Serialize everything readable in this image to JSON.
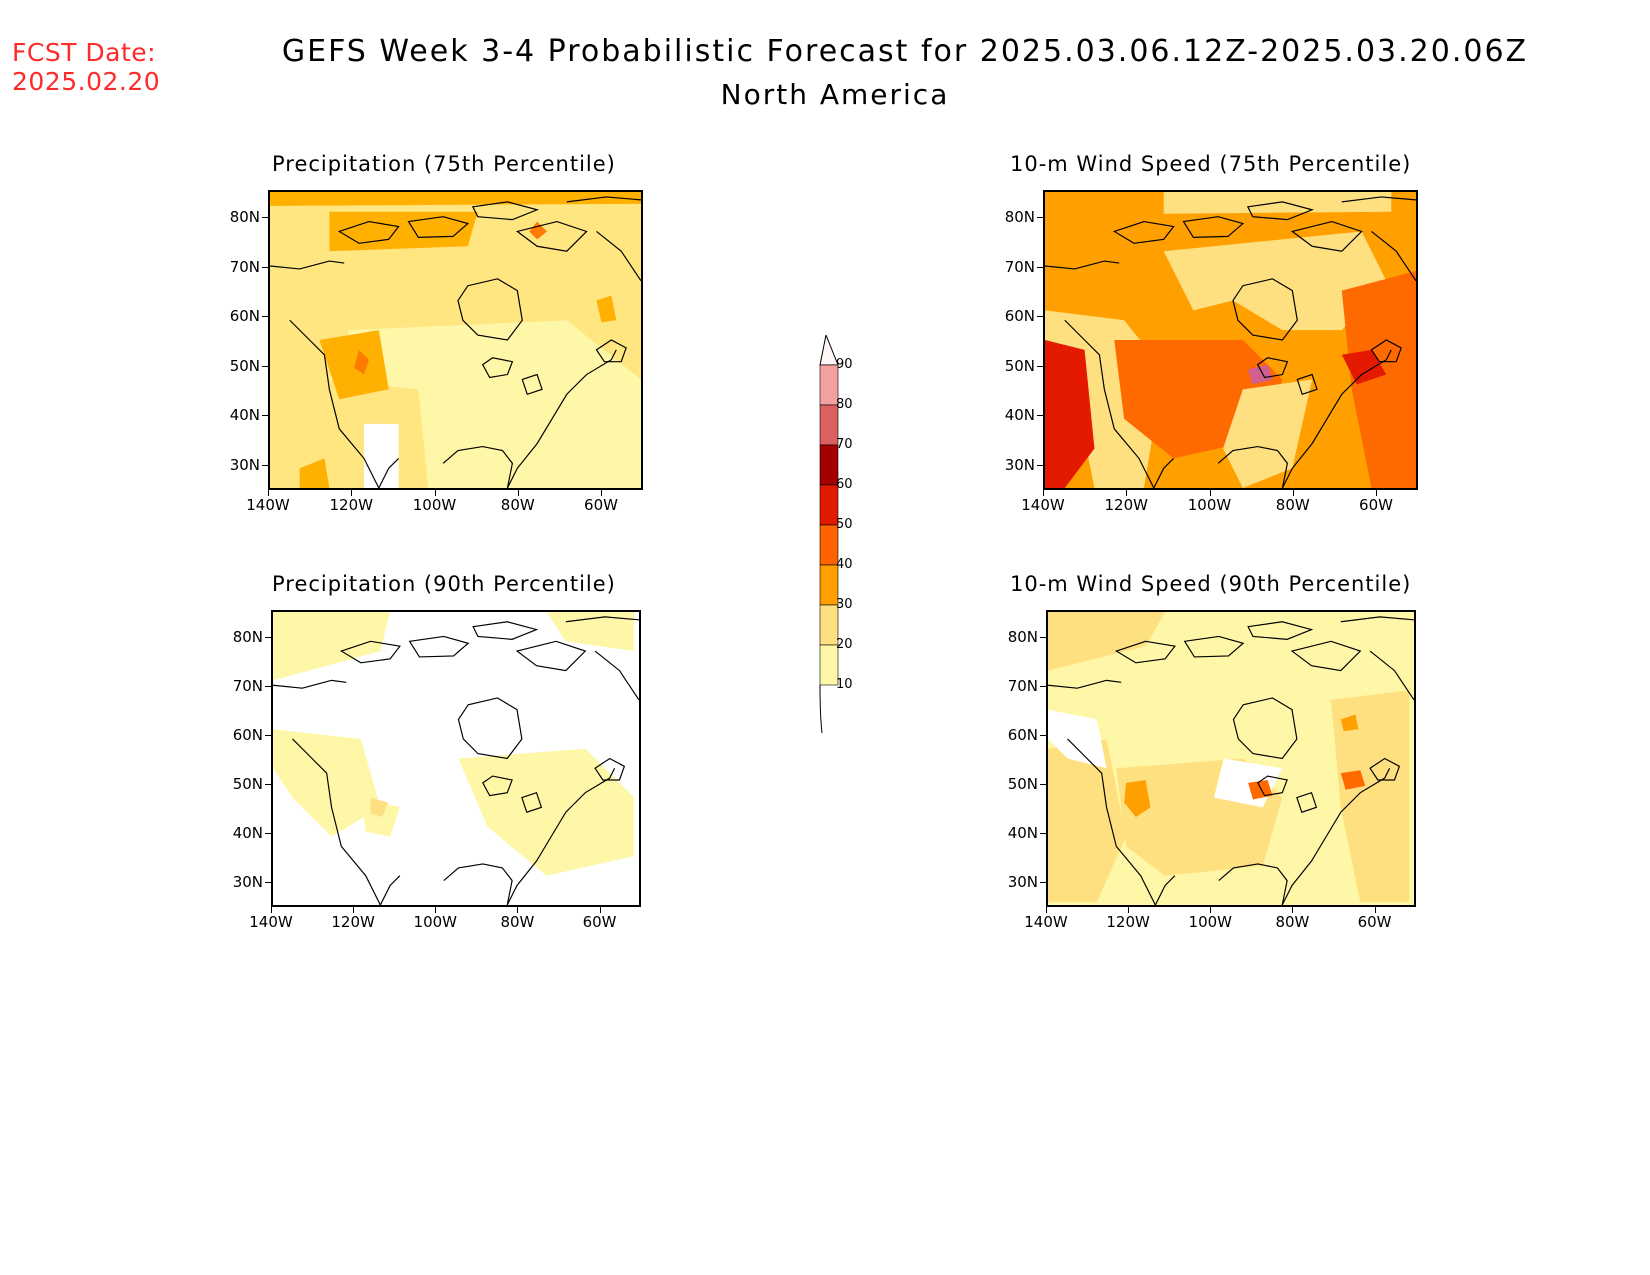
{
  "header": {
    "fcst_label": "FCST Date:",
    "fcst_date": "2025.02.20",
    "title": "GEFS Week 3-4 Probabilistic Forecast for 2025.03.06.12Z-2025.03.20.06Z",
    "subtitle": "North America"
  },
  "panels": [
    {
      "id": "p1",
      "title": "Precipitation (75th Percentile)",
      "palette": "precip75"
    },
    {
      "id": "p2",
      "title": "10-m Wind Speed (75th Percentile)",
      "palette": "wind75"
    },
    {
      "id": "p3",
      "title": "Precipitation (90th Percentile)",
      "palette": "precip90"
    },
    {
      "id": "p4",
      "title": "10-m Wind Speed (90th Percentile)",
      "palette": "wind90"
    }
  ],
  "axes": {
    "lat_labels": [
      "80N",
      "70N",
      "60N",
      "50N",
      "40N",
      "30N"
    ],
    "lon_labels": [
      "140W",
      "120W",
      "100W",
      "80W",
      "60W"
    ]
  },
  "colorbar": {
    "labels": [
      "90",
      "80",
      "70",
      "60",
      "50",
      "40",
      "30",
      "20",
      "10"
    ],
    "colors": [
      "#fff6f6",
      "#f4a0a0",
      "#dd6060",
      "#a50000",
      "#e31a00",
      "#ff6200",
      "#ff9e00",
      "#ffe080",
      "#fff7a8"
    ]
  }
}
